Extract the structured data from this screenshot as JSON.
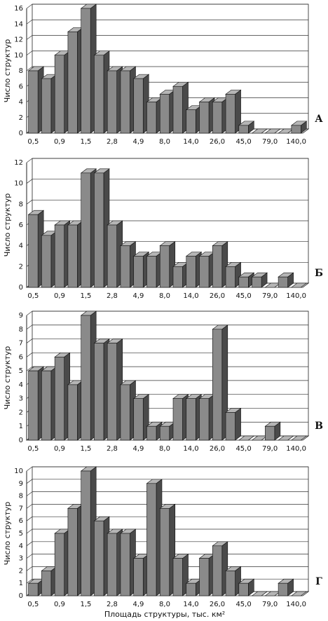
{
  "chart_data": [
    {
      "type": "bar",
      "panel_label": "А",
      "y_label": "Число структур",
      "color": "#8a8a8a",
      "categories": [
        "0,5",
        null,
        "0,9",
        null,
        "1,5",
        null,
        "2,8",
        null,
        "4,9",
        null,
        "8,0",
        null,
        "14,0",
        null,
        "26,0",
        null,
        "45,0",
        null,
        "79,0",
        null,
        "140,0"
      ],
      "values": [
        8,
        7,
        10,
        13,
        16,
        10,
        8,
        8,
        7,
        4,
        5,
        6,
        3,
        4,
        4,
        5,
        1,
        0,
        0,
        0,
        1
      ],
      "ylim": [
        0,
        16
      ],
      "yticks": [
        0,
        2,
        4,
        6,
        8,
        10,
        12,
        14,
        16
      ],
      "grid": true
    },
    {
      "type": "bar",
      "panel_label": "Б",
      "y_label": "Число структур",
      "color": "#8a8a8a",
      "categories": [
        "0,5",
        null,
        "0,9",
        null,
        "1,5",
        null,
        "2,8",
        null,
        "4,9",
        null,
        "8,0",
        null,
        "14,0",
        null,
        "26,0",
        null,
        "45,0",
        null,
        "79,0",
        null,
        "140,0"
      ],
      "values": [
        7,
        5,
        6,
        6,
        11,
        11,
        6,
        4,
        3,
        3,
        4,
        2,
        3,
        3,
        4,
        2,
        1,
        1,
        0,
        1,
        0
      ],
      "ylim": [
        0,
        12
      ],
      "yticks": [
        0,
        2,
        4,
        6,
        8,
        10,
        12
      ],
      "grid": true
    },
    {
      "type": "bar",
      "panel_label": "В",
      "y_label": "Число структур",
      "color": "#8a8a8a",
      "categories": [
        "0,5",
        null,
        "0,9",
        null,
        "1,5",
        null,
        "2,8",
        null,
        "4,9",
        null,
        "8,0",
        null,
        "14,0",
        null,
        "26,0",
        null,
        "45,0",
        null,
        "79,0",
        null,
        "140,0"
      ],
      "values": [
        5,
        5,
        6,
        4,
        9,
        7,
        7,
        4,
        3,
        1,
        1,
        3,
        3,
        3,
        8,
        2,
        0,
        0,
        1,
        0,
        0
      ],
      "ylim": [
        0,
        9
      ],
      "yticks": [
        0,
        1,
        2,
        3,
        4,
        5,
        6,
        7,
        8,
        9
      ],
      "grid": true
    },
    {
      "type": "bar",
      "panel_label": "Г",
      "y_label": "Число структур",
      "x_label": "Площадь структуры, тыс. км²",
      "color": "#8a8a8a",
      "categories": [
        "0,5",
        null,
        "0,9",
        null,
        "1,5",
        null,
        "2,8",
        null,
        "4,9",
        null,
        "8,0",
        null,
        "14,0",
        null,
        "26,0",
        null,
        "45,0",
        null,
        "79,0",
        null,
        "140,0"
      ],
      "values": [
        1,
        2,
        5,
        7,
        10,
        6,
        5,
        5,
        3,
        9,
        7,
        3,
        1,
        3,
        4,
        2,
        1,
        0,
        0,
        1,
        0
      ],
      "ylim": [
        0,
        10
      ],
      "yticks": [
        0,
        1,
        2,
        3,
        4,
        5,
        6,
        7,
        8,
        9,
        10
      ],
      "grid": true
    }
  ]
}
